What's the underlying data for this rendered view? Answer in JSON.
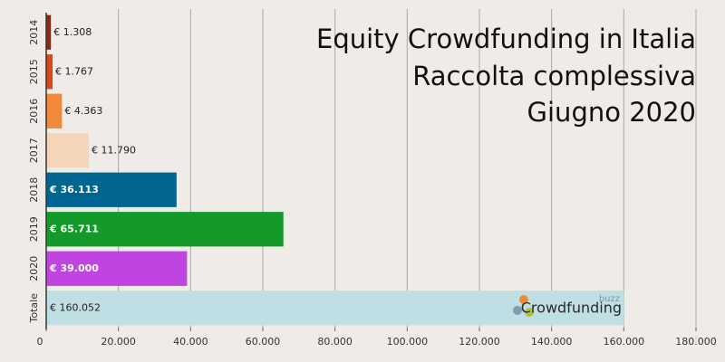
{
  "chart_data": {
    "type": "hbar",
    "title": [
      "Equity Crowdfunding in Italia",
      "Raccolta complessiva",
      "Giugno 2020"
    ],
    "categories": [
      "2014",
      "2015",
      "2016",
      "2017",
      "2018",
      "2019",
      "2020",
      "Totale"
    ],
    "values": [
      1308,
      1767,
      4363,
      11790,
      36113,
      65711,
      39000,
      160052
    ],
    "value_labels": [
      "€ 1.308",
      "€ 1.767",
      "€ 4.363",
      "€ 11.790",
      "€ 36.113",
      "€ 65.711",
      "€ 39.000",
      "€ 160.052"
    ],
    "colors": [
      "#8b2a14",
      "#d44a1e",
      "#f08a3a",
      "#f5d5b8",
      "#006691",
      "#149a2a",
      "#c044e0",
      "#c0dfe5"
    ],
    "xlim": [
      0,
      180000
    ],
    "xticks": [
      0,
      {
        "value": 20000,
        "label": "20.000"
      },
      {
        "value": 40000,
        "label": "40.000"
      },
      {
        "value": 60000,
        "label": "60.000"
      },
      {
        "value": 80000,
        "label": "80.000"
      },
      {
        "value": 100000,
        "label": "100.000"
      },
      {
        "value": 120000,
        "label": "120.000"
      },
      {
        "value": 140000,
        "label": "140.000"
      },
      {
        "value": 160000,
        "label": "160.000"
      },
      {
        "value": 180000,
        "label": "180.000"
      }
    ],
    "grid": true,
    "annotations": [
      "buzz",
      "Crowdfunding"
    ]
  }
}
